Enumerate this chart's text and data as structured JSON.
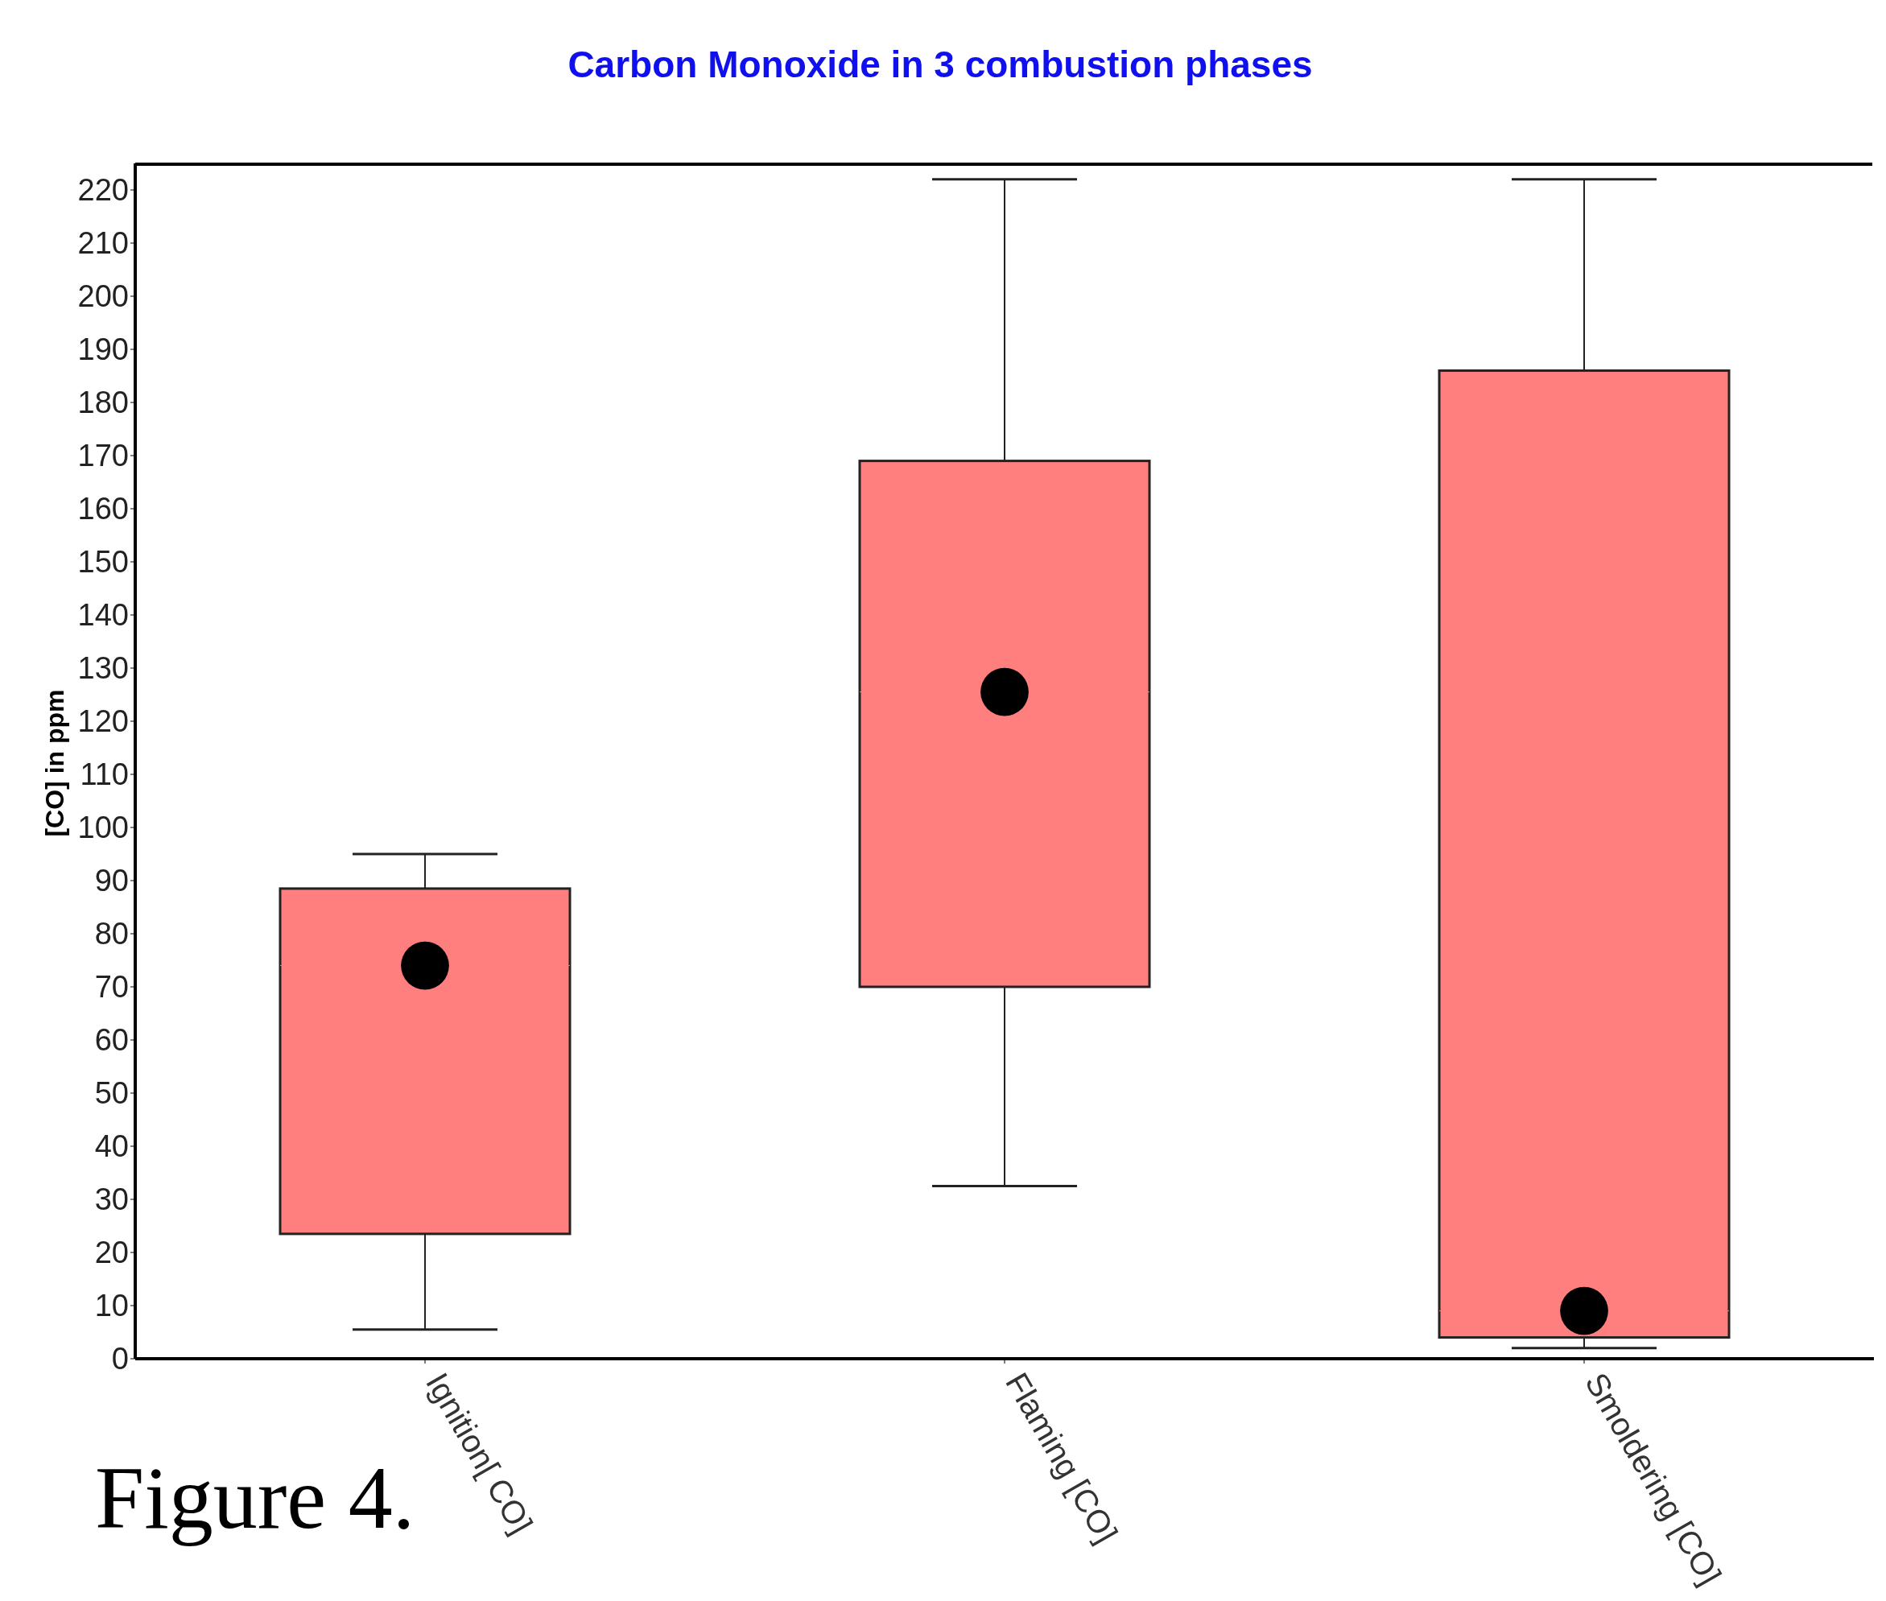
{
  "chart_data": {
    "type": "box",
    "title": "Carbon Monoxide in 3 combustion phases",
    "ylabel": "[CO] in ppm",
    "categories": [
      "Ignition[ CO]",
      "Flaming [CO]",
      "Smoldering [CO]"
    ],
    "color": "#ff7f7f",
    "boxes": [
      {
        "low": 5.5,
        "q1": 23.5,
        "median": 74,
        "q3": 88.5,
        "high": 95
      },
      {
        "low": 32.5,
        "q1": 70,
        "median": 125.5,
        "q3": 169,
        "high": 222
      },
      {
        "low": 2,
        "q1": 4,
        "median": 9,
        "q3": 186,
        "high": 222
      }
    ],
    "series": [
      {
        "type": "scatter",
        "color": "#000000",
        "marker": "circle",
        "x": [
          "Ignition[ CO]",
          "Flaming [CO]",
          "Smoldering [CO]"
        ],
        "values": [
          74,
          125.5,
          9
        ]
      }
    ],
    "ylim": [
      0,
      225
    ],
    "yticks": [
      0,
      10,
      20,
      30,
      40,
      50,
      60,
      70,
      80,
      90,
      100,
      110,
      120,
      130,
      140,
      150,
      160,
      170,
      180,
      190,
      200,
      210,
      220
    ],
    "annotations": [
      "Figure 4."
    ]
  }
}
